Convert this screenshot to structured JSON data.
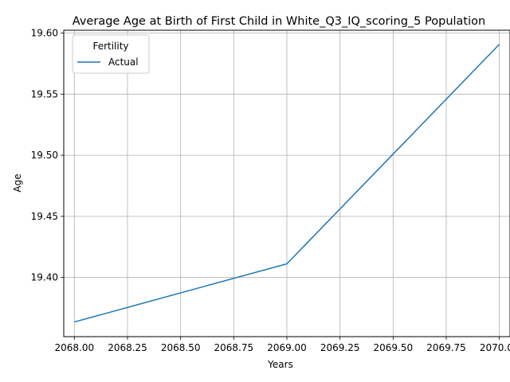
{
  "chart_data": {
    "type": "line",
    "title": "Average Age at Birth of First Child in White_Q3_IQ_scoring_5 Population",
    "xlabel": "Years",
    "ylabel": "Age",
    "xlim": [
      2067.95,
      2070.05
    ],
    "ylim": [
      19.3516,
      19.6023
    ],
    "x_ticks": [
      "2068.00",
      "2068.25",
      "2068.50",
      "2068.75",
      "2069.00",
      "2069.25",
      "2069.50",
      "2069.75",
      "2070.00"
    ],
    "y_ticks": [
      "19.40",
      "19.45",
      "19.50",
      "19.55",
      "19.60"
    ],
    "grid": true,
    "legend": {
      "title": "Fertility",
      "position": "top-left"
    },
    "series": [
      {
        "name": "Actual",
        "color": "#1f77b4",
        "x": [
          2068,
          2069,
          2070
        ],
        "y": [
          19.3636,
          19.4112,
          19.5908
        ]
      }
    ]
  }
}
